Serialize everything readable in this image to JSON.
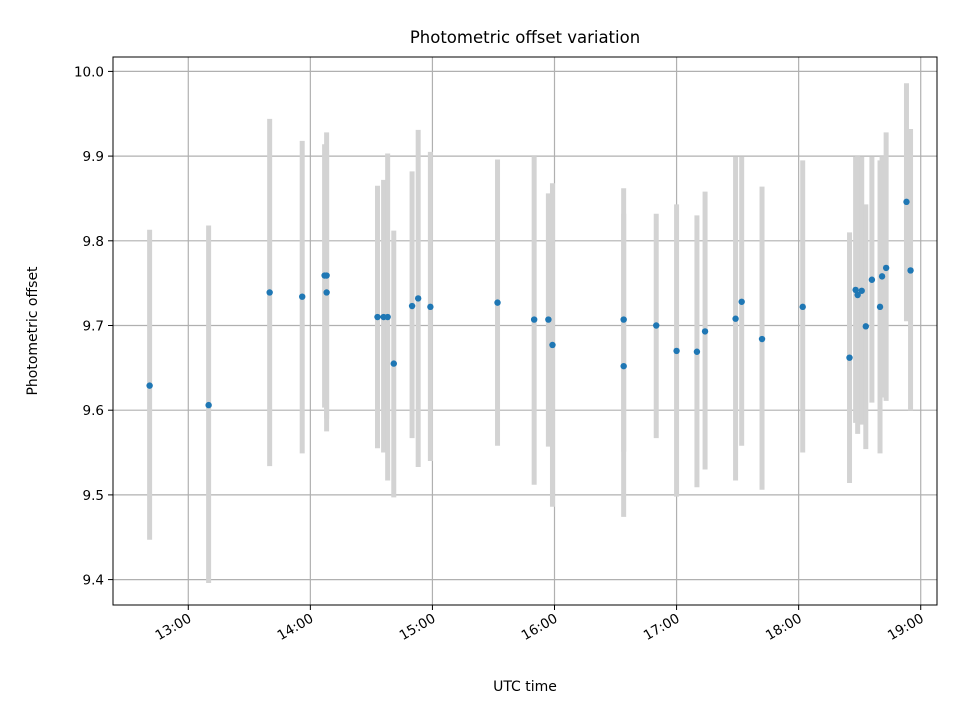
{
  "colors": {
    "point": "#1f77b4",
    "errorbar": "#d3d3d3",
    "grid": "#b0b0b0",
    "axis": "#000000"
  },
  "chart_data": {
    "type": "scatter",
    "title": "Photometric offset variation",
    "xlabel": "UTC time",
    "ylabel": "Photometric offset",
    "grid": true,
    "xlim": [
      "12:23",
      "19:08"
    ],
    "ylim": [
      9.37,
      10.017
    ],
    "xticks": [
      "13:00",
      "14:00",
      "15:00",
      "16:00",
      "17:00",
      "18:00",
      "19:00"
    ],
    "yticks": [
      "9.4",
      "9.5",
      "9.6",
      "9.7",
      "9.8",
      "9.9",
      "10.0"
    ],
    "points": [
      {
        "x": "12:41",
        "y": 9.629,
        "yerr": [
          9.447,
          9.813
        ]
      },
      {
        "x": "13:10",
        "y": 9.606,
        "yerr": [
          9.396,
          9.818
        ]
      },
      {
        "x": "13:40",
        "y": 9.739,
        "yerr": [
          9.534,
          9.944
        ]
      },
      {
        "x": "13:56",
        "y": 9.734,
        "yerr": [
          9.549,
          9.918
        ]
      },
      {
        "x": "14:07",
        "y": 9.759,
        "yerr": [
          9.603,
          9.914
        ]
      },
      {
        "x": "14:08",
        "y": 9.739,
        "yerr": [
          9.575,
          9.907
        ]
      },
      {
        "x": "14:08",
        "y": 9.759,
        "yerr": [
          9.59,
          9.928
        ]
      },
      {
        "x": "14:33",
        "y": 9.71,
        "yerr": [
          9.555,
          9.865
        ]
      },
      {
        "x": "14:36",
        "y": 9.71,
        "yerr": [
          9.55,
          9.872
        ]
      },
      {
        "x": "14:38",
        "y": 9.71,
        "yerr": [
          9.517,
          9.903
        ]
      },
      {
        "x": "14:41",
        "y": 9.655,
        "yerr": [
          9.497,
          9.812
        ]
      },
      {
        "x": "14:50",
        "y": 9.723,
        "yerr": [
          9.567,
          9.882
        ]
      },
      {
        "x": "14:53",
        "y": 9.732,
        "yerr": [
          9.533,
          9.931
        ]
      },
      {
        "x": "14:59",
        "y": 9.722,
        "yerr": [
          9.54,
          9.905
        ]
      },
      {
        "x": "15:32",
        "y": 9.727,
        "yerr": [
          9.558,
          9.896
        ]
      },
      {
        "x": "15:50",
        "y": 9.707,
        "yerr": [
          9.512,
          9.9
        ]
      },
      {
        "x": "15:57",
        "y": 9.707,
        "yerr": [
          9.557,
          9.856
        ]
      },
      {
        "x": "15:59",
        "y": 9.677,
        "yerr": [
          9.486,
          9.868
        ]
      },
      {
        "x": "16:34",
        "y": 9.707,
        "yerr": [
          9.551,
          9.862
        ]
      },
      {
        "x": "16:34",
        "y": 9.652,
        "yerr": [
          9.474,
          9.832
        ]
      },
      {
        "x": "16:50",
        "y": 9.7,
        "yerr": [
          9.567,
          9.832
        ]
      },
      {
        "x": "17:00",
        "y": 9.67,
        "yerr": [
          9.498,
          9.843
        ]
      },
      {
        "x": "17:10",
        "y": 9.669,
        "yerr": [
          9.509,
          9.83
        ]
      },
      {
        "x": "17:14",
        "y": 9.693,
        "yerr": [
          9.53,
          9.858
        ]
      },
      {
        "x": "17:29",
        "y": 9.708,
        "yerr": [
          9.517,
          9.899
        ]
      },
      {
        "x": "17:32",
        "y": 9.728,
        "yerr": [
          9.558,
          9.899
        ]
      },
      {
        "x": "17:42",
        "y": 9.684,
        "yerr": [
          9.506,
          9.864
        ]
      },
      {
        "x": "18:02",
        "y": 9.722,
        "yerr": [
          9.55,
          9.895
        ]
      },
      {
        "x": "18:25",
        "y": 9.662,
        "yerr": [
          9.514,
          9.81
        ]
      },
      {
        "x": "18:28",
        "y": 9.742,
        "yerr": [
          9.585,
          9.899
        ]
      },
      {
        "x": "18:29",
        "y": 9.736,
        "yerr": [
          9.572,
          9.9
        ]
      },
      {
        "x": "18:31",
        "y": 9.741,
        "yerr": [
          9.583,
          9.899
        ]
      },
      {
        "x": "18:33",
        "y": 9.699,
        "yerr": [
          9.554,
          9.843
        ]
      },
      {
        "x": "18:36",
        "y": 9.754,
        "yerr": [
          9.609,
          9.899
        ]
      },
      {
        "x": "18:40",
        "y": 9.722,
        "yerr": [
          9.549,
          9.895
        ]
      },
      {
        "x": "18:41",
        "y": 9.758,
        "yerr": [
          9.615,
          9.9
        ]
      },
      {
        "x": "18:43",
        "y": 9.768,
        "yerr": [
          9.611,
          9.928
        ]
      },
      {
        "x": "18:53",
        "y": 9.846,
        "yerr": [
          9.705,
          9.986
        ]
      },
      {
        "x": "18:55",
        "y": 9.765,
        "yerr": [
          9.6,
          9.932
        ]
      }
    ]
  }
}
